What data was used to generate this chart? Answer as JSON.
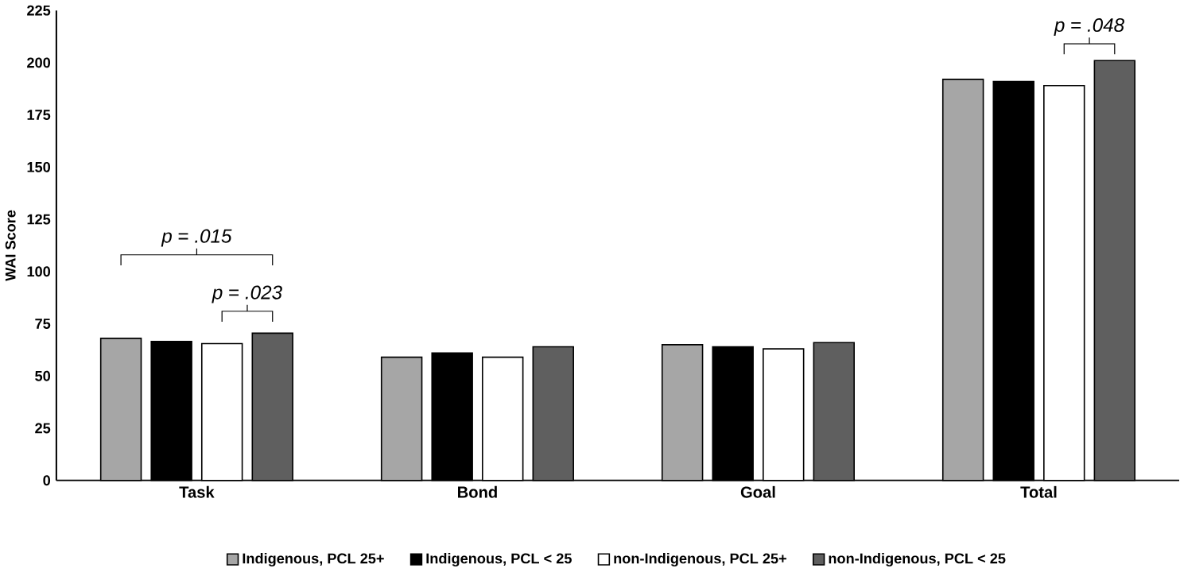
{
  "chart_data": {
    "type": "bar",
    "ylabel": "WAI Score",
    "categories": [
      "Task",
      "Bond",
      "Goal",
      "Total"
    ],
    "series": [
      {
        "name": "Indigenous, PCL 25+",
        "color": "#a6a6a6",
        "values": [
          68,
          59,
          65,
          192
        ]
      },
      {
        "name": "Indigenous, PCL < 25",
        "color": "#000000",
        "values": [
          66.5,
          61,
          64,
          191
        ]
      },
      {
        "name": "non-Indigenous, PCL 25+",
        "color": "#ffffff",
        "values": [
          65.5,
          59,
          63,
          189
        ]
      },
      {
        "name": "non-Indigenous, PCL < 25",
        "color": "#5f5f5f",
        "values": [
          70.5,
          64,
          66,
          201
        ]
      }
    ],
    "ylim": [
      0,
      225
    ],
    "yticks": [
      0,
      25,
      50,
      75,
      100,
      125,
      150,
      175,
      200,
      225
    ],
    "grid": false,
    "legend": "bottom",
    "annotations": [
      "*p* = *.015*",
      "*p* = *.023*",
      "*p* = *.048*"
    ]
  }
}
